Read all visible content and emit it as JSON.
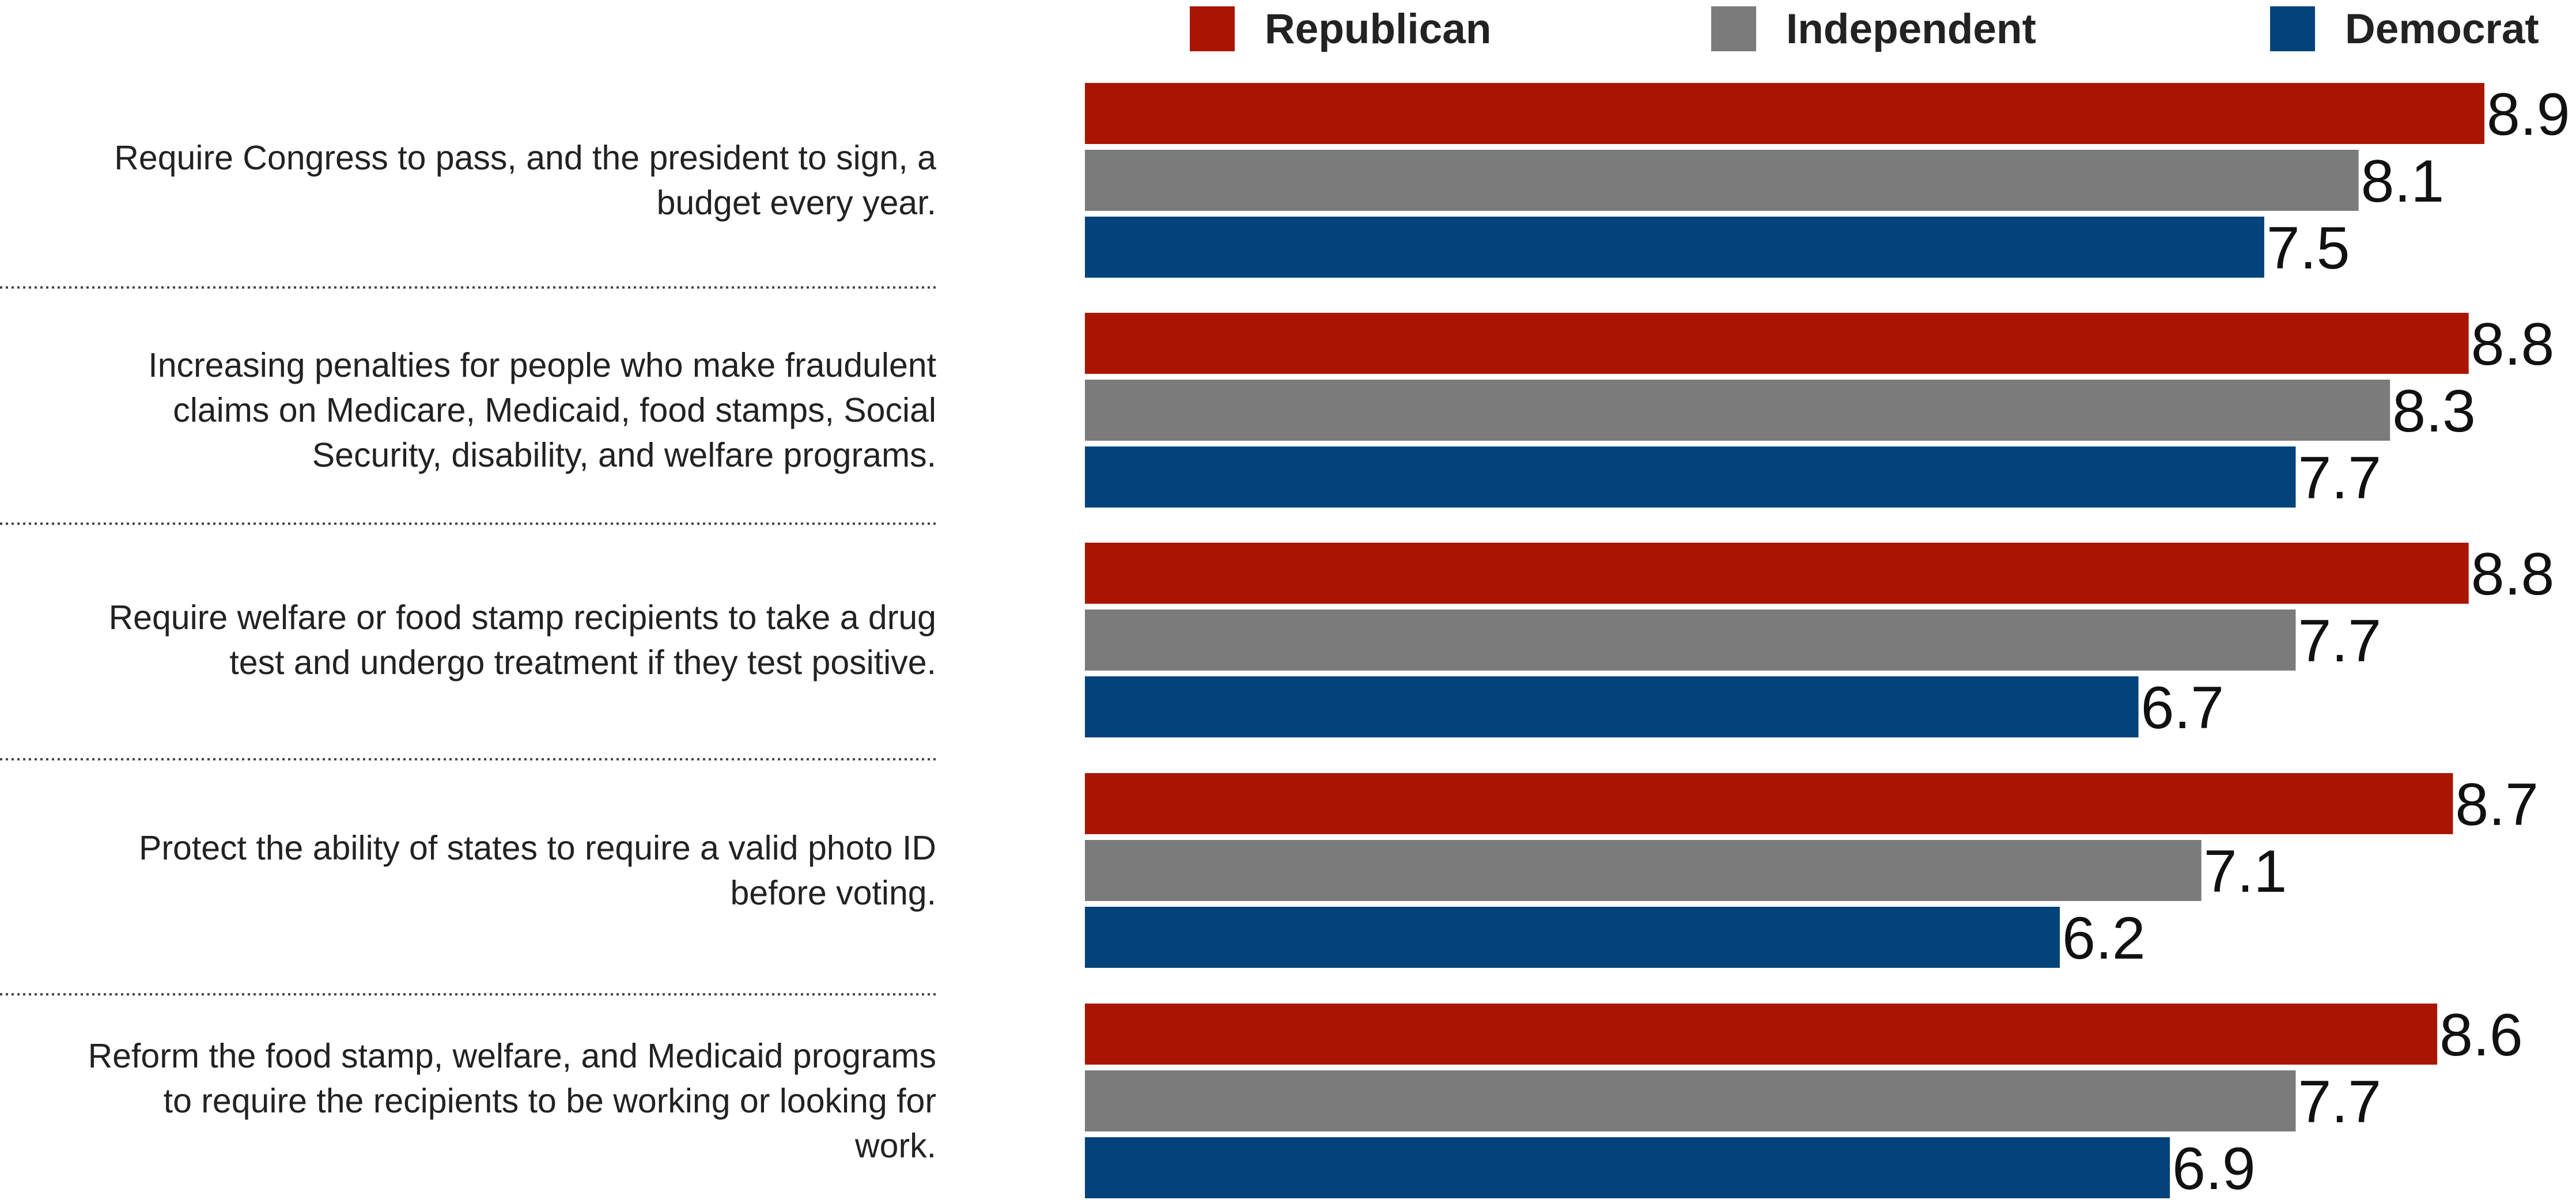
{
  "chart_data": {
    "type": "bar",
    "orientation": "horizontal",
    "categories": [
      [
        "Require Congress to pass, and the president to sign, a",
        "budget every year."
      ],
      [
        "Increasing penalties for people who make fraudulent",
        "claims on Medicare, Medicaid, food stamps, Social",
        "Security, disability, and welfare programs."
      ],
      [
        "Require welfare or food stamp recipients to take a drug",
        "test and undergo treatment if they test positive."
      ],
      [
        "Protect the ability of states to require a valid photo ID",
        "before voting."
      ],
      [
        "Reform the food stamp, welfare, and Medicaid programs",
        "to require the recipients to be working or looking for",
        "work."
      ]
    ],
    "series": [
      {
        "name": "Republican",
        "color": "#AA1501",
        "values": [
          8.9,
          8.8,
          8.8,
          8.7,
          8.6
        ]
      },
      {
        "name": "Independent",
        "color": "#7B7B7B",
        "values": [
          8.1,
          8.3,
          7.7,
          7.1,
          7.7
        ]
      },
      {
        "name": "Democrat",
        "color": "#03437A",
        "values": [
          7.5,
          7.7,
          6.7,
          6.2,
          6.9
        ]
      }
    ],
    "xlim": [
      0,
      8.9
    ],
    "grid": false,
    "legend_position": "top-right",
    "title": "",
    "xlabel": "",
    "ylabel": ""
  }
}
